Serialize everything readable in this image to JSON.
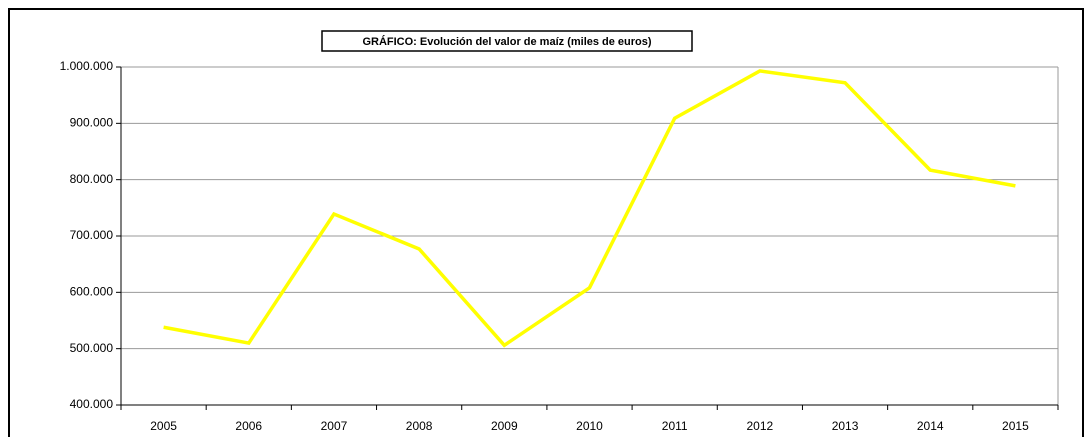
{
  "chart_data": {
    "type": "line",
    "title": "GRÁFICO: Evolución del valor de maíz (miles de euros)",
    "categories": [
      "2005",
      "2006",
      "2007",
      "2008",
      "2009",
      "2010",
      "2011",
      "2012",
      "2013",
      "2014",
      "2015"
    ],
    "values": [
      538000,
      510000,
      739000,
      677000,
      506000,
      608000,
      909000,
      993000,
      972000,
      817000,
      789000
    ],
    "color": "#ffff00",
    "ylim": [
      400000,
      1000000
    ],
    "yticks": [
      {
        "value": 400000,
        "label": "400.000"
      },
      {
        "value": 500000,
        "label": "500.000"
      },
      {
        "value": 600000,
        "label": "600.000"
      },
      {
        "value": 700000,
        "label": "700.000"
      },
      {
        "value": 800000,
        "label": "800.000"
      },
      {
        "value": 900000,
        "label": "900.000"
      },
      {
        "value": 1000000,
        "label": "1.000.000"
      }
    ],
    "grid": true
  }
}
